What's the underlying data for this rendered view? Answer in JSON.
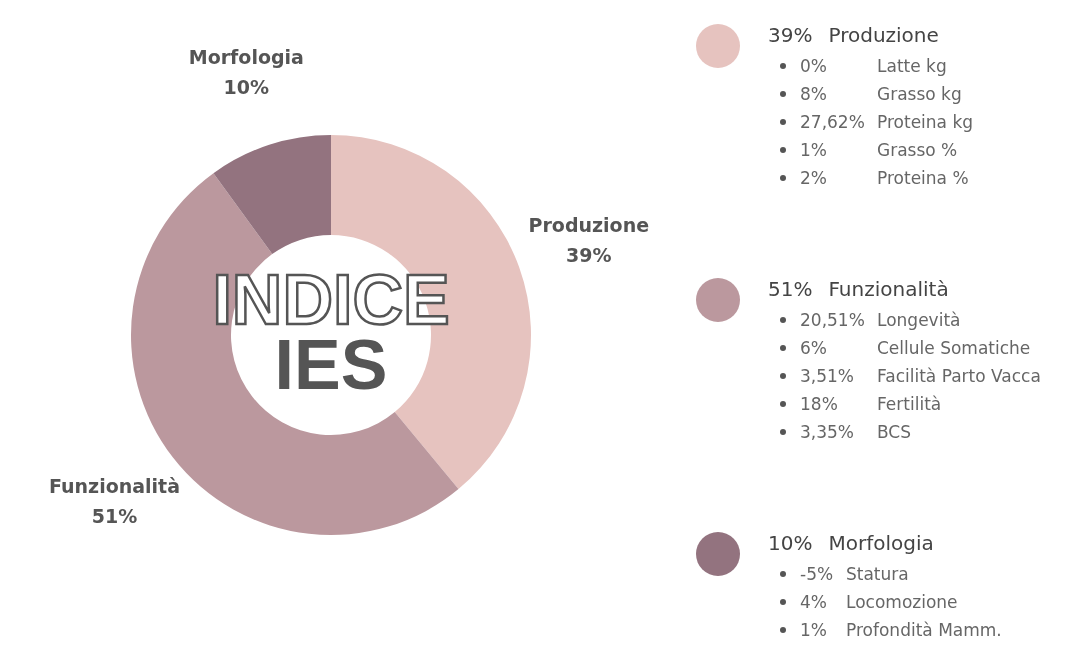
{
  "chart_data": {
    "type": "donut",
    "title": "INDICE",
    "subtitle": "IES",
    "categories": [
      "Produzione",
      "Funzionalità",
      "Morfologia"
    ],
    "values": [
      39,
      51,
      10
    ],
    "colors": [
      "#e6c3bf",
      "#bb989e",
      "#93737f"
    ],
    "value_labels": [
      "39%",
      "51%",
      "10%"
    ],
    "annotations": [
      {
        "text": "0%\tLatte kg",
        "x": "Produzione"
      },
      {
        "text": "8%\tGrasso kg",
        "x": "Produzione"
      },
      {
        "text": "27,62%\tProteina kg",
        "x": "Produzione"
      },
      {
        "text": "1%\tGrasso %",
        "x": "Produzione"
      },
      {
        "text": "2%\tProteina %",
        "x": "Produzione"
      },
      {
        "text": "20,51%\tLongevità",
        "x": "Funzionalità"
      },
      {
        "text": "6%\tCellule Somatiche",
        "x": "Funzionalità"
      },
      {
        "text": "3,51%\tFacilità Parto Vacca",
        "x": "Funzionalità"
      },
      {
        "text": "18%\tFertilità",
        "x": "Funzionalità"
      },
      {
        "text": "3,35%\tBCS",
        "x": "Funzionalità"
      },
      {
        "text": "-5%\tStatura",
        "x": "Morfologia"
      },
      {
        "text": "4%\tLocomozione",
        "x": "Morfologia"
      },
      {
        "text": "1%\tProfondità Mamm.",
        "x": "Morfologia"
      }
    ]
  }
}
